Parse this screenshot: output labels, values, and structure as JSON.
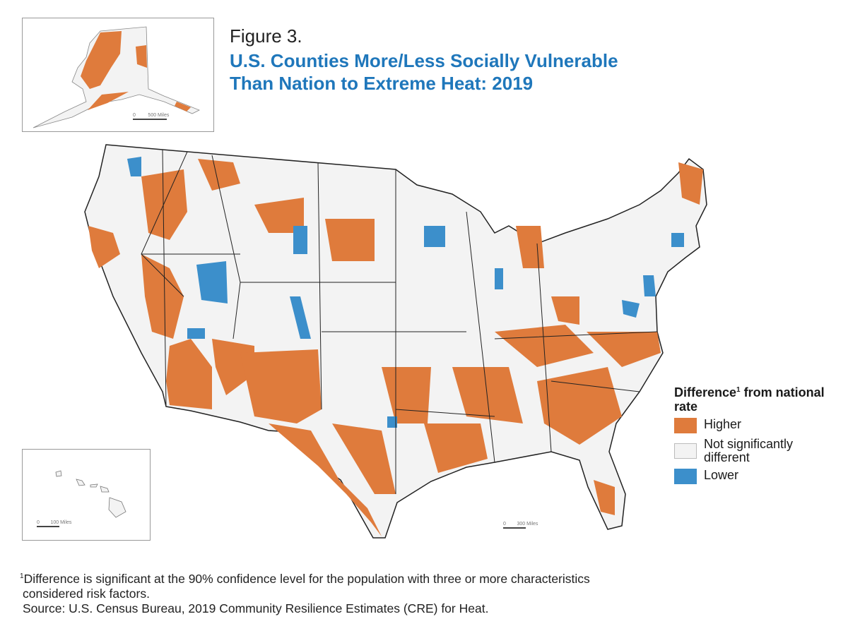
{
  "figure": {
    "label": "Figure 3.",
    "title_line1": "U.S. Counties More/Less Socially Vulnerable",
    "title_line2": "Than Nation to Extreme Heat: 2019"
  },
  "legend": {
    "heading": "Difference",
    "heading_sup": "1",
    "heading_rest": " from national rate",
    "items": [
      {
        "label": "Higher",
        "color": "#df7b3c"
      },
      {
        "label": "Not significantly different",
        "color": "#f3f3f3"
      },
      {
        "label": "Lower",
        "color": "#3c8fcb"
      }
    ]
  },
  "scales": {
    "alaska": {
      "zero": "0",
      "label": "500 Miles"
    },
    "hawaii": {
      "zero": "0",
      "label": "100 Miles"
    },
    "mainland": {
      "zero": "0",
      "label": "300 Miles"
    }
  },
  "footnote": {
    "sup": "1",
    "line1": "Difference is significant at the 90% confidence level for the population with three or more characteristics",
    "line2": "considered risk factors.",
    "source": "Source: U.S. Census Bureau, 2019 Community Resilience Estimates (CRE) for Heat."
  },
  "colors": {
    "higher": "#df7b3c",
    "not_significant": "#f3f3f3",
    "lower": "#3c8fcb",
    "title": "#1f77bb"
  }
}
